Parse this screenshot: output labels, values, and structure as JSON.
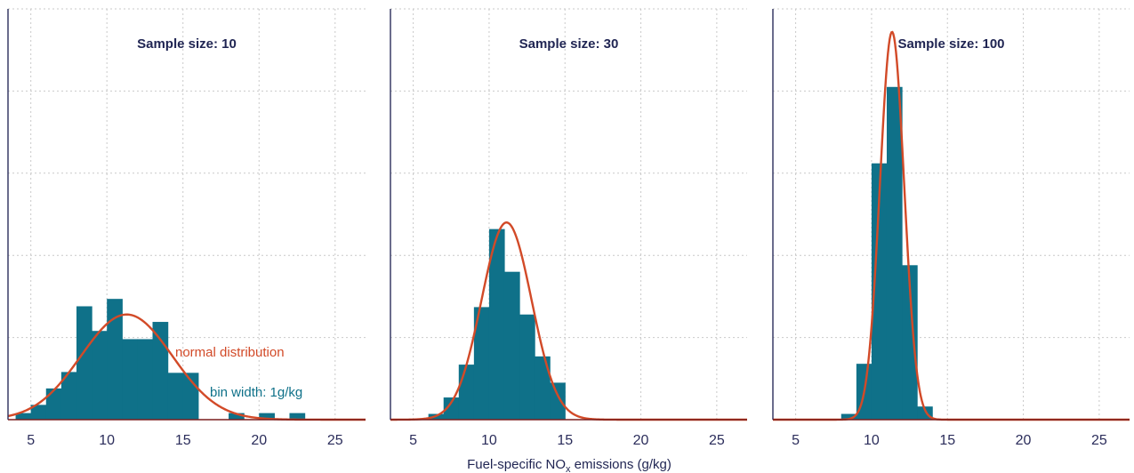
{
  "colors": {
    "bar": "#0f7189",
    "curve": "#d24a28",
    "axis": "#2b2d5b"
  },
  "xlabel": {
    "prefix": "Fuel-specific NO",
    "subscript": "x",
    "suffix": " emissions (g/kg)"
  },
  "chart_data": [
    {
      "type": "bar",
      "title": "Sample size: 10",
      "xlim": [
        3.5,
        27
      ],
      "ylim": [
        0,
        5
      ],
      "xticks": [
        5,
        10,
        15,
        20,
        25
      ],
      "bin_width": 1,
      "bins": [
        {
          "x0": 4,
          "x1": 5,
          "y": 0.08
        },
        {
          "x0": 5,
          "x1": 6,
          "y": 0.18
        },
        {
          "x0": 6,
          "x1": 7,
          "y": 0.38
        },
        {
          "x0": 7,
          "x1": 8,
          "y": 0.58
        },
        {
          "x0": 8,
          "x1": 9,
          "y": 1.38
        },
        {
          "x0": 9,
          "x1": 10,
          "y": 1.08
        },
        {
          "x0": 10,
          "x1": 11,
          "y": 1.47
        },
        {
          "x0": 11,
          "x1": 12,
          "y": 0.98
        },
        {
          "x0": 12,
          "x1": 13,
          "y": 0.98
        },
        {
          "x0": 13,
          "x1": 14,
          "y": 1.19
        },
        {
          "x0": 14,
          "x1": 15,
          "y": 0.57
        },
        {
          "x0": 15,
          "x1": 16,
          "y": 0.57
        },
        {
          "x0": 18,
          "x1": 19,
          "y": 0.08
        },
        {
          "x0": 20,
          "x1": 21,
          "y": 0.08
        },
        {
          "x0": 22,
          "x1": 23,
          "y": 0.08
        }
      ],
      "normal": {
        "mean": 11.3,
        "sd": 3.0,
        "peak": 1.28
      },
      "annotations": [
        "normal distribution",
        "bin width: 1g/kg"
      ]
    },
    {
      "type": "bar",
      "title": "Sample size: 30",
      "xlim": [
        3.5,
        27
      ],
      "ylim": [
        0,
        5
      ],
      "xticks": [
        5,
        10,
        15,
        20,
        25
      ],
      "bin_width": 1,
      "bins": [
        {
          "x0": 6,
          "x1": 7,
          "y": 0.07
        },
        {
          "x0": 7,
          "x1": 8,
          "y": 0.27
        },
        {
          "x0": 8,
          "x1": 9,
          "y": 0.67
        },
        {
          "x0": 9,
          "x1": 10,
          "y": 1.37
        },
        {
          "x0": 10,
          "x1": 11,
          "y": 2.32
        },
        {
          "x0": 11,
          "x1": 12,
          "y": 1.8
        },
        {
          "x0": 12,
          "x1": 13,
          "y": 1.28
        },
        {
          "x0": 13,
          "x1": 14,
          "y": 0.77
        },
        {
          "x0": 14,
          "x1": 15,
          "y": 0.45
        }
      ],
      "normal": {
        "mean": 11.15,
        "sd": 1.65,
        "peak": 2.4
      }
    },
    {
      "type": "bar",
      "title": "Sample size: 100",
      "xlim": [
        3.5,
        27
      ],
      "ylim": [
        0,
        5
      ],
      "xticks": [
        5,
        10,
        15,
        20,
        25
      ],
      "bin_width": 1,
      "bins": [
        {
          "x0": 8,
          "x1": 9,
          "y": 0.07
        },
        {
          "x0": 9,
          "x1": 10,
          "y": 0.68
        },
        {
          "x0": 10,
          "x1": 11,
          "y": 3.12
        },
        {
          "x0": 11,
          "x1": 12,
          "y": 4.05
        },
        {
          "x0": 12,
          "x1": 13,
          "y": 1.88
        },
        {
          "x0": 13,
          "x1": 14,
          "y": 0.16
        }
      ],
      "normal": {
        "mean": 11.35,
        "sd": 0.8,
        "peak": 4.72
      }
    }
  ]
}
